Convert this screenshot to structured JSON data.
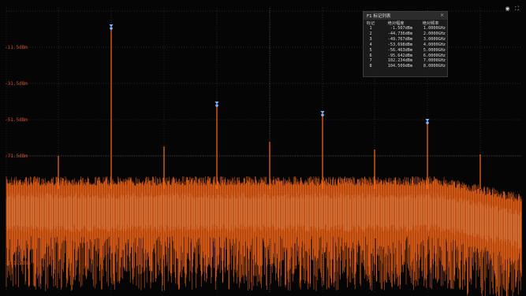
{
  "panel": {
    "title": "F1 标记列表",
    "close_glyph": "×",
    "columns": [
      "标记",
      "绝对幅度",
      "绝对频率"
    ],
    "rows": [
      [
        "1",
        "-1.507dBm",
        "1.0000GHz"
      ],
      [
        "2",
        "-44.736dBm",
        "2.0000GHz"
      ],
      [
        "3",
        "-49.767dBm",
        "3.0000GHz"
      ],
      [
        "4",
        "-53.698dBm",
        "4.0000GHz"
      ],
      [
        "5",
        "-56.463dBm",
        "5.0000GHz"
      ],
      [
        "6",
        "-95.642dBm",
        "6.0000GHz"
      ],
      [
        "7",
        "102.234dBm",
        "7.0000GHz"
      ],
      [
        "8",
        "104.509dBm",
        "8.0000GHz"
      ]
    ]
  },
  "y_labels": [
    "-11.5dBm",
    "-31.5dBm",
    "-51.5dBm",
    "-71.5dBm",
    "-111.5dBm",
    "-131.5dBm"
  ],
  "icons": [
    "camera-icon",
    "fullscreen-icon"
  ],
  "colors": {
    "trace": "#ff6a1a",
    "trace_core": "#ffd2b0",
    "grid": "#4a4a4a",
    "marker": "#7fb4ff",
    "label": "#c0502a"
  }
}
